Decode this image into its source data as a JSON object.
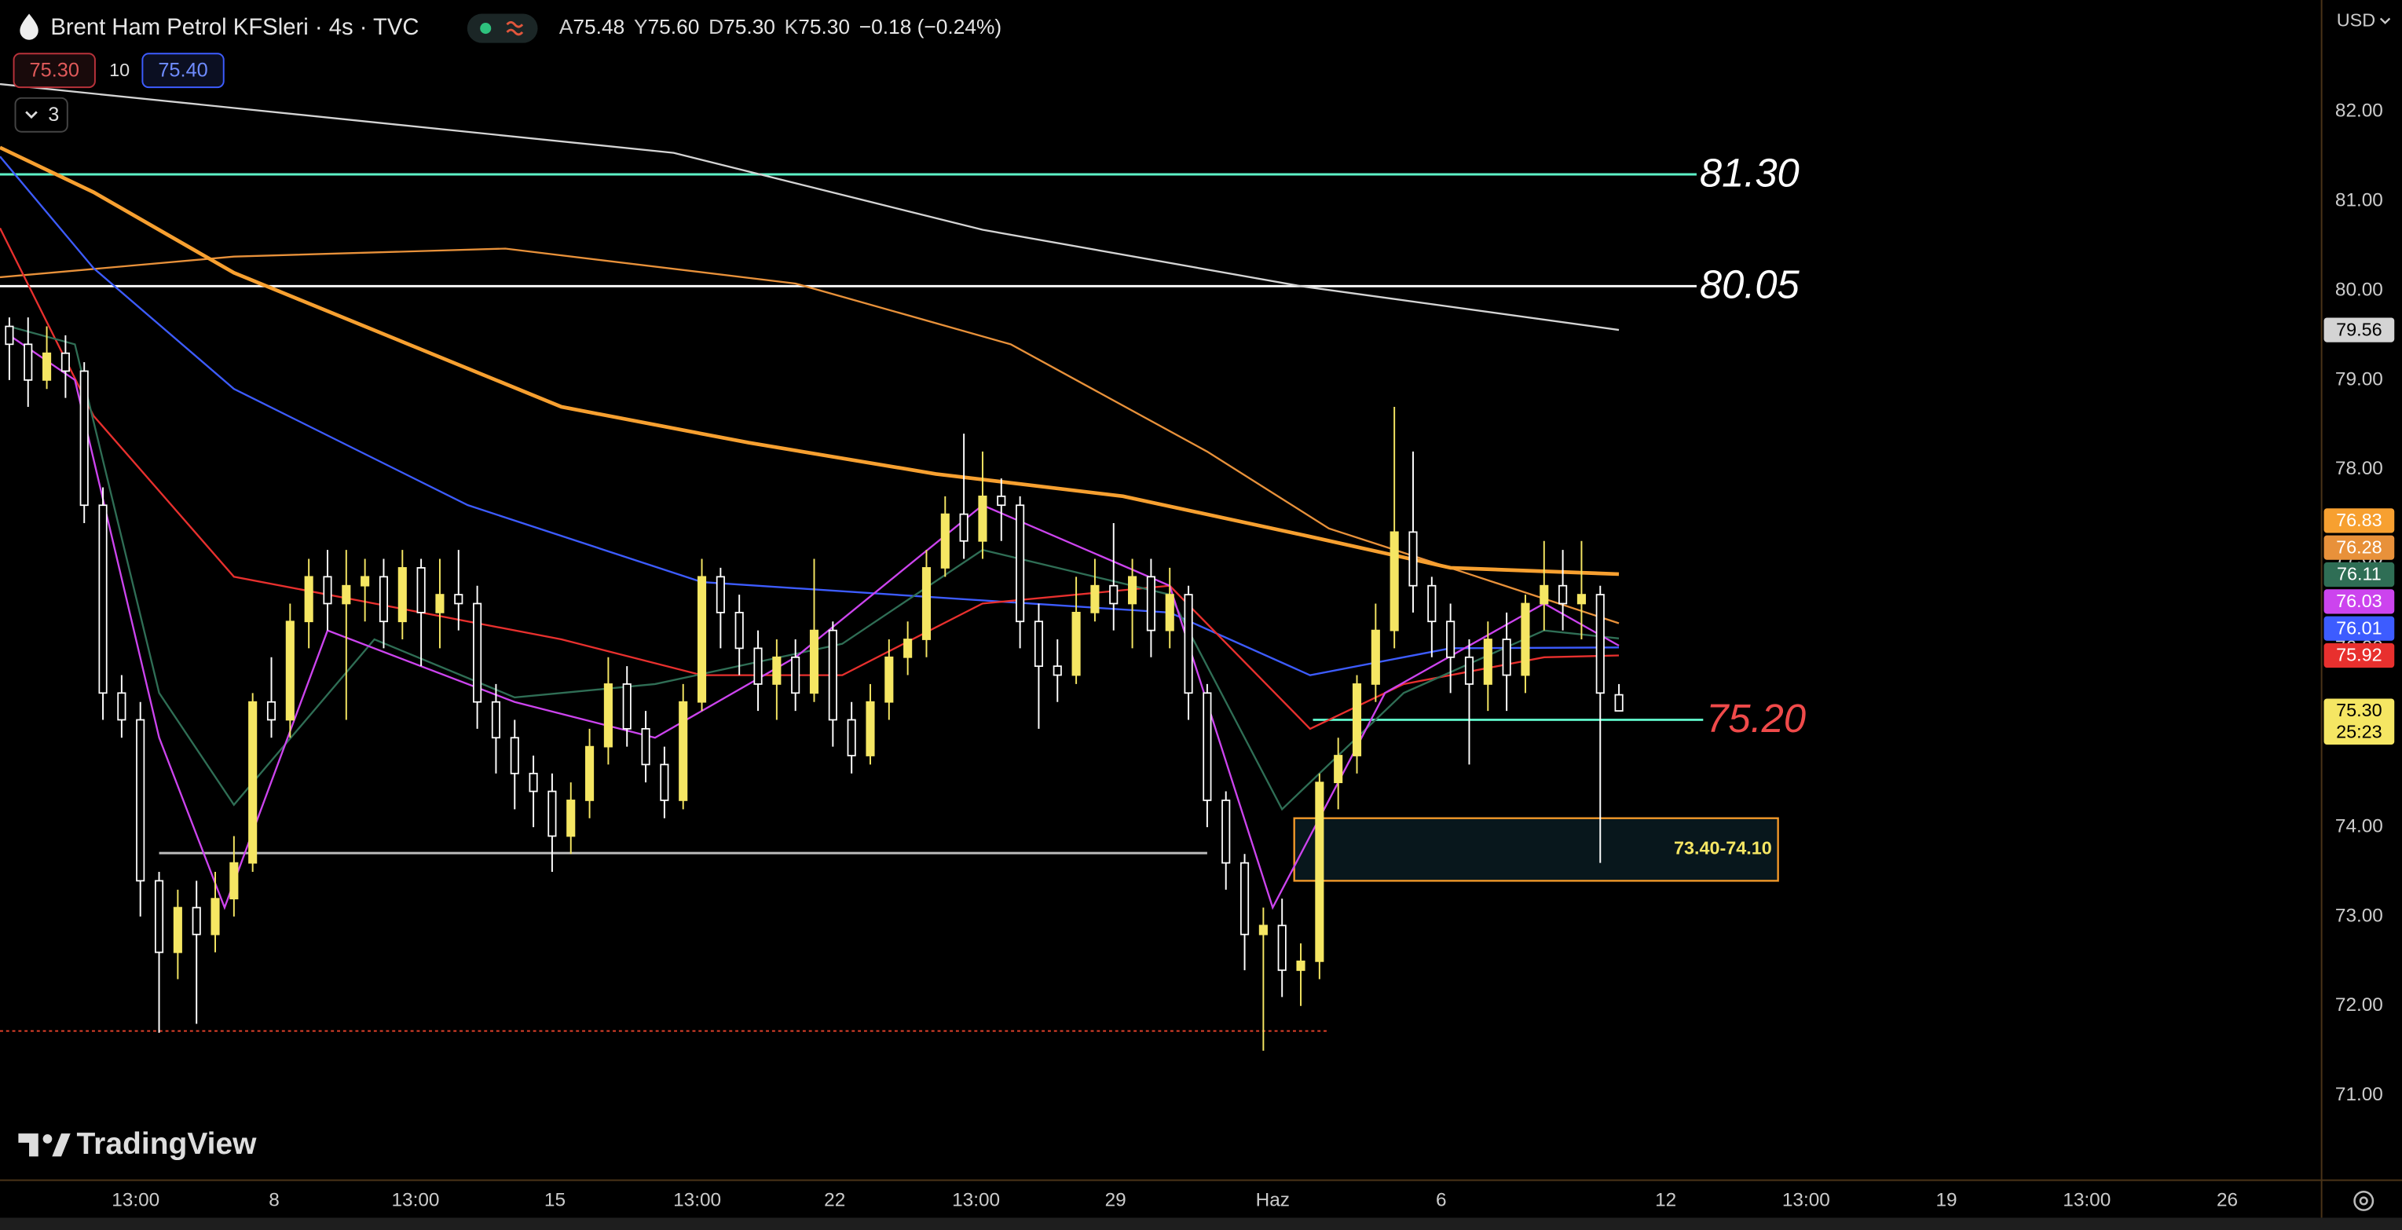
{
  "header": {
    "symbol": "Brent Ham Petrol KFSleri · 4s · TVC",
    "ohlc": [
      {
        "label": "A",
        "value": "75.48"
      },
      {
        "label": "Y",
        "value": "75.60"
      },
      {
        "label": "D",
        "value": "75.30"
      },
      {
        "label": "K",
        "value": "75.30"
      }
    ],
    "change": "−0.18 (−0.24%)",
    "sell": "75.30",
    "spread": "10",
    "buy": "75.40",
    "collapsed": "3",
    "currency": "USD",
    "logo": "TradingView"
  },
  "chart_data": {
    "type": "candlestick",
    "up_color": "#f5e663",
    "down_color": "#ffffff",
    "xlim": [
      0,
      248
    ],
    "ylim": [
      70.06,
      83.25
    ],
    "xticks": [
      {
        "value": 14.5,
        "label": "13:00"
      },
      {
        "value": 29.3,
        "label": "8"
      },
      {
        "value": 44.4,
        "label": "13:00"
      },
      {
        "value": 59.3,
        "label": "15"
      },
      {
        "value": 74.5,
        "label": "13:00"
      },
      {
        "value": 89.2,
        "label": "22"
      },
      {
        "value": 104.3,
        "label": "13:00"
      },
      {
        "value": 119.2,
        "label": "29"
      },
      {
        "value": 136,
        "label": "Haz"
      },
      {
        "value": 154,
        "label": "6"
      },
      {
        "value": 178,
        "label": "12"
      },
      {
        "value": 193,
        "label": "13:00"
      },
      {
        "value": 208,
        "label": "19"
      },
      {
        "value": 223,
        "label": "13:00"
      },
      {
        "value": 238,
        "label": "26"
      }
    ],
    "yticks": [
      {
        "value": 82,
        "label": "82.00"
      },
      {
        "value": 81,
        "label": "81.00"
      },
      {
        "value": 80,
        "label": "80.00"
      },
      {
        "value": 79,
        "label": "79.00"
      },
      {
        "value": 78,
        "label": "78.00"
      },
      {
        "value": 77,
        "label": "77.00"
      },
      {
        "value": 76,
        "label": "76.00"
      },
      {
        "value": 75,
        "label": "75.00"
      },
      {
        "value": 74,
        "label": "74.00"
      },
      {
        "value": 73,
        "label": "73.00"
      },
      {
        "value": 72,
        "label": "72.00"
      },
      {
        "value": 71,
        "label": "71.00"
      }
    ],
    "x": [
      1,
      3,
      5,
      7,
      9,
      11,
      13,
      15,
      17,
      19,
      21,
      23,
      25,
      27,
      29,
      31,
      33,
      35,
      37,
      39,
      41,
      43,
      45,
      47,
      49,
      51,
      53,
      55,
      57,
      59,
      61,
      63,
      65,
      67,
      69,
      71,
      73,
      75,
      77,
      79,
      81,
      83,
      85,
      87,
      89,
      91,
      93,
      95,
      97,
      99,
      101,
      103,
      105,
      107,
      109,
      111,
      113,
      115,
      117,
      119,
      121,
      123,
      125,
      127,
      129,
      131,
      133,
      135,
      137,
      139,
      141,
      143,
      145,
      147,
      149,
      151,
      153,
      155,
      157,
      159,
      161,
      163,
      165,
      167,
      169,
      171,
      173
    ],
    "open": [
      79.6,
      79.4,
      79.0,
      79.3,
      79.1,
      77.6,
      75.5,
      75.2,
      73.4,
      72.6,
      73.1,
      72.8,
      73.2,
      73.6,
      75.4,
      75.2,
      76.3,
      76.8,
      76.5,
      76.7,
      76.8,
      76.3,
      76.9,
      76.4,
      76.6,
      76.5,
      75.4,
      75.0,
      74.6,
      74.4,
      73.9,
      74.3,
      74.9,
      75.6,
      75.1,
      74.7,
      74.3,
      75.4,
      76.8,
      76.4,
      76.0,
      75.6,
      75.9,
      75.5,
      76.2,
      75.2,
      74.8,
      75.4,
      75.9,
      76.1,
      76.9,
      77.5,
      77.2,
      77.7,
      77.6,
      76.3,
      75.8,
      75.7,
      76.4,
      76.7,
      76.5,
      76.8,
      76.2,
      76.6,
      75.5,
      74.3,
      73.6,
      72.8,
      72.9,
      72.4,
      72.5,
      74.5,
      74.8,
      75.6,
      76.2,
      77.3,
      76.7,
      76.3,
      75.9,
      75.6,
      76.1,
      75.7,
      76.5,
      76.7,
      76.5,
      76.6,
      75.48
    ],
    "high": [
      79.7,
      79.7,
      79.6,
      79.5,
      79.2,
      77.8,
      75.7,
      75.4,
      73.5,
      73.3,
      73.4,
      73.5,
      73.9,
      75.5,
      75.9,
      76.5,
      77.0,
      77.1,
      77.1,
      77.0,
      77.0,
      77.1,
      77.0,
      77.0,
      77.1,
      76.7,
      75.6,
      75.2,
      74.8,
      74.6,
      74.5,
      75.1,
      75.9,
      75.8,
      75.3,
      74.9,
      75.6,
      77.0,
      76.9,
      76.6,
      76.2,
      76.1,
      76.1,
      77.0,
      76.3,
      75.4,
      75.6,
      76.1,
      76.3,
      77.1,
      77.7,
      78.4,
      78.2,
      77.9,
      77.7,
      76.5,
      76.1,
      76.8,
      77.0,
      77.4,
      77.0,
      77.0,
      76.9,
      76.7,
      75.6,
      74.4,
      73.7,
      73.1,
      73.2,
      72.7,
      74.6,
      75.0,
      75.7,
      76.5,
      78.7,
      78.2,
      76.8,
      76.5,
      76.1,
      76.3,
      76.4,
      76.6,
      77.2,
      77.1,
      77.2,
      76.7,
      75.6
    ],
    "low": [
      79.0,
      78.7,
      78.9,
      78.8,
      77.4,
      75.2,
      75.0,
      73.0,
      71.7,
      72.3,
      71.8,
      72.6,
      73.0,
      73.5,
      75.0,
      75.0,
      76.0,
      76.2,
      75.2,
      76.3,
      76.0,
      76.1,
      75.8,
      76.0,
      76.2,
      75.1,
      74.6,
      74.2,
      74.0,
      73.5,
      73.7,
      74.1,
      74.7,
      74.9,
      74.5,
      74.1,
      74.2,
      75.3,
      76.0,
      75.7,
      75.3,
      75.2,
      75.3,
      75.4,
      74.9,
      74.6,
      74.7,
      75.2,
      75.7,
      75.9,
      76.8,
      77.0,
      77.0,
      77.2,
      76.0,
      75.1,
      75.4,
      75.6,
      76.3,
      76.2,
      76.0,
      75.9,
      76.0,
      75.2,
      74.0,
      73.3,
      72.4,
      71.5,
      72.1,
      72.0,
      72.3,
      74.2,
      74.6,
      75.4,
      76.0,
      76.4,
      75.9,
      75.5,
      74.7,
      75.3,
      75.3,
      75.5,
      76.2,
      76.2,
      76.1,
      73.6,
      75.3
    ],
    "close": [
      79.4,
      79.0,
      79.3,
      79.1,
      77.6,
      75.5,
      75.2,
      73.4,
      72.6,
      73.1,
      72.8,
      73.2,
      73.6,
      75.4,
      75.2,
      76.3,
      76.8,
      76.5,
      76.7,
      76.8,
      76.3,
      76.9,
      76.4,
      76.6,
      76.5,
      75.4,
      75.0,
      74.6,
      74.4,
      73.9,
      74.3,
      74.9,
      75.6,
      75.1,
      74.7,
      74.3,
      75.4,
      76.8,
      76.4,
      76.0,
      75.6,
      75.9,
      75.5,
      76.2,
      75.2,
      74.8,
      75.4,
      75.9,
      76.1,
      76.9,
      77.5,
      77.2,
      77.7,
      77.6,
      76.3,
      75.8,
      75.7,
      76.4,
      76.7,
      76.5,
      76.8,
      76.2,
      76.6,
      75.5,
      74.3,
      73.6,
      72.8,
      72.9,
      72.4,
      72.5,
      74.5,
      74.8,
      75.6,
      76.2,
      77.3,
      76.7,
      76.3,
      75.9,
      75.6,
      76.1,
      75.7,
      76.5,
      76.7,
      76.5,
      76.6,
      75.5,
      75.3
    ],
    "last_price_label": "75.30",
    "countdown": "25:23",
    "lines": [
      {
        "color": "#d4d4d4",
        "x": [
          0,
          72,
          105,
          139,
          173
        ],
        "values": [
          82.31,
          81.54,
          80.68,
          80.05,
          79.56
        ],
        "price_label": "79.56"
      },
      {
        "color": "#e8913a",
        "x": [
          0,
          25,
          54,
          85,
          108,
          129,
          142,
          157,
          173
        ],
        "values": [
          80.15,
          80.38,
          80.47,
          80.08,
          79.4,
          78.2,
          77.34,
          76.83,
          76.28
        ],
        "price_label": "76.28"
      },
      {
        "color": "#f7a030",
        "bold": true,
        "x": [
          0,
          10,
          25,
          60,
          80,
          100,
          120,
          140,
          155,
          173
        ],
        "values": [
          81.6,
          81.1,
          80.2,
          78.7,
          78.3,
          77.95,
          77.7,
          77.25,
          76.9,
          76.83
        ],
        "price_label": "76.83"
      },
      {
        "color": "#3d5cff",
        "x": [
          0,
          10,
          25,
          50,
          75,
          100,
          125,
          140,
          155,
          173
        ],
        "values": [
          81.5,
          80.25,
          78.9,
          77.6,
          76.74,
          76.57,
          76.4,
          75.7,
          76.0,
          76.01
        ],
        "price_label": "76.01"
      },
      {
        "color": "#e8302e",
        "x": [
          0,
          10,
          25,
          40,
          60,
          75,
          90,
          105,
          125,
          140,
          150,
          165,
          173
        ],
        "values": [
          80.7,
          78.6,
          76.8,
          76.5,
          76.1,
          75.7,
          75.7,
          76.5,
          76.7,
          75.1,
          75.6,
          75.9,
          75.92
        ],
        "price_label": "75.92"
      },
      {
        "color": "#2f6e55",
        "x": [
          1,
          8,
          17,
          25,
          40,
          55,
          70,
          90,
          105,
          125,
          137,
          150,
          165,
          173
        ],
        "values": [
          79.6,
          79.4,
          75.5,
          74.25,
          76.1,
          75.45,
          75.6,
          76.05,
          77.1,
          76.6,
          74.2,
          75.5,
          76.2,
          76.11
        ],
        "price_label": "76.11"
      },
      {
        "color": "#cc44ee",
        "x": [
          1,
          8,
          17,
          24,
          35,
          55,
          70,
          85,
          105,
          125,
          136,
          148,
          165,
          173
        ],
        "values": [
          79.5,
          79.0,
          75.0,
          73.1,
          76.2,
          75.4,
          75.0,
          75.9,
          77.6,
          76.7,
          73.1,
          75.5,
          76.5,
          76.03
        ],
        "price_label": "76.03"
      }
    ],
    "levels": [
      {
        "value": 81.3,
        "label": "81.30",
        "color": "#5ef2c8",
        "label_color": "#ffffff",
        "x_range": [
          0,
          181.3
        ]
      },
      {
        "value": 80.05,
        "label": "80.05",
        "color": "#ffffff",
        "label_color": "#ffffff",
        "x_range": [
          0,
          181.3
        ]
      },
      {
        "value": 75.2,
        "label": "75.20",
        "color": "#5ef2c8",
        "label_color": "#f04a4a",
        "x_range": [
          140.3,
          182
        ]
      },
      {
        "value": 73.71,
        "color": "#bdbdbd",
        "x_range": [
          17,
          129
        ]
      },
      {
        "value": 71.72,
        "color": "#e0402a",
        "dashed": true,
        "x_range": [
          0,
          142
        ]
      }
    ],
    "zone": {
      "low": 73.4,
      "high": 74.1,
      "label": "73.40-74.10",
      "x_range": [
        138.3,
        190
      ],
      "color": "#f59b2a",
      "fill": "#08171c",
      "label_color": "#f5e663"
    }
  }
}
